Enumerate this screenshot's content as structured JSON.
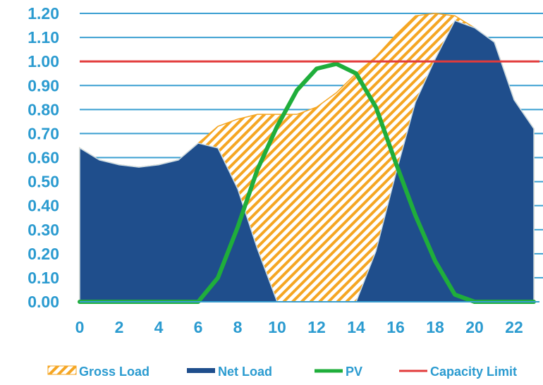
{
  "chart_data": {
    "type": "area",
    "x": [
      0,
      1,
      2,
      3,
      4,
      5,
      6,
      7,
      8,
      9,
      10,
      11,
      12,
      13,
      14,
      15,
      16,
      17,
      18,
      19,
      20,
      21,
      22,
      23
    ],
    "xticks": [
      0,
      2,
      4,
      6,
      8,
      10,
      12,
      14,
      16,
      18,
      20,
      22
    ],
    "xlim": [
      0,
      23
    ],
    "ylim": [
      0,
      1.2
    ],
    "yticks": [
      "0.00",
      "0.10",
      "0.20",
      "0.30",
      "0.40",
      "0.50",
      "0.60",
      "0.70",
      "0.80",
      "0.90",
      "1.00",
      "1.10",
      "1.20"
    ],
    "grid": "horizontal",
    "legend_position": "bottom",
    "series": [
      {
        "name": "Gross Load",
        "kind": "hatched-area",
        "color": "#f5a623",
        "values": [
          0.64,
          0.59,
          0.57,
          0.56,
          0.57,
          0.59,
          0.66,
          0.73,
          0.76,
          0.78,
          0.78,
          0.78,
          0.81,
          0.87,
          0.95,
          1.02,
          1.11,
          1.19,
          1.2,
          1.19,
          1.14,
          1.08,
          0.84,
          0.72
        ]
      },
      {
        "name": "Net Load",
        "kind": "area",
        "color": "#1f4e8c",
        "values": [
          0.64,
          0.59,
          0.57,
          0.56,
          0.57,
          0.59,
          0.66,
          0.64,
          0.47,
          0.22,
          0.0,
          0.0,
          0.0,
          0.0,
          0.0,
          0.21,
          0.53,
          0.83,
          1.01,
          1.17,
          1.14,
          1.08,
          0.84,
          0.72
        ]
      },
      {
        "name": "PV",
        "kind": "line",
        "color": "#1fae3b",
        "values": [
          0,
          0,
          0,
          0,
          0,
          0,
          0,
          0.1,
          0.31,
          0.55,
          0.73,
          0.88,
          0.97,
          0.99,
          0.95,
          0.81,
          0.58,
          0.36,
          0.17,
          0.03,
          0,
          0,
          0,
          0
        ]
      },
      {
        "name": "Capacity Limit",
        "kind": "line",
        "color": "#e23b3b",
        "values": [
          1,
          1,
          1,
          1,
          1,
          1,
          1,
          1,
          1,
          1,
          1,
          1,
          1,
          1,
          1,
          1,
          1,
          1,
          1,
          1,
          1,
          1,
          1,
          1
        ]
      }
    ]
  }
}
